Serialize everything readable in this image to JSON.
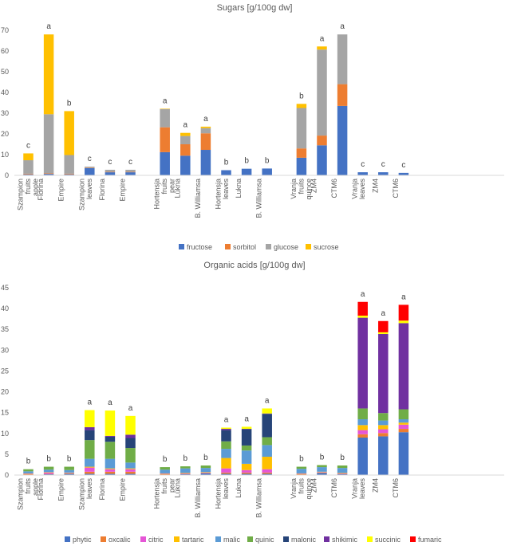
{
  "colors": {
    "fructose": "#4472c4",
    "sorbitol": "#ed7d31",
    "glucose": "#a5a5a5",
    "sucrose": "#ffc000",
    "phytic": "#4472c4",
    "oxcalic": "#ed7d31",
    "citric": "#e556d6",
    "tartaric": "#ffc000",
    "malic": "#5b9bd5",
    "quinic": "#70ad47",
    "malonic": "#264478",
    "shikimic": "#7030a0",
    "succinic": "#ffff00",
    "fumaric": "#ff0000"
  },
  "chart_data": [
    {
      "type": "bar",
      "stacked": true,
      "title": "Sugars [g/100g dw]",
      "ylim": [
        0,
        70
      ],
      "yticks": [
        0,
        10,
        20,
        30,
        40,
        50,
        60,
        70
      ],
      "categories": [
        {
          "lines": [
            "Szampion",
            "fruits",
            "apple"
          ],
          "sig": "c",
          "gap_before": false
        },
        {
          "lines": [
            "Florina"
          ],
          "sig": "a",
          "gap_before": false
        },
        {
          "lines": [
            "Empire"
          ],
          "sig": "b",
          "gap_before": false
        },
        {
          "lines": [
            "Szampion",
            "leaves"
          ],
          "sig": "c",
          "gap_before": false
        },
        {
          "lines": [
            "Florina"
          ],
          "sig": "c",
          "gap_before": false
        },
        {
          "lines": [
            "Empire"
          ],
          "sig": "c",
          "gap_before": false
        },
        {
          "lines": [
            "Hortensja",
            "fruits",
            "pear"
          ],
          "sig": "a",
          "gap_before": true
        },
        {
          "lines": [
            "Lukna"
          ],
          "sig": "a",
          "gap_before": false
        },
        {
          "lines": [
            "B. Williamsa"
          ],
          "sig": "a",
          "gap_before": false
        },
        {
          "lines": [
            "Hortensja",
            "leaves"
          ],
          "sig": "b",
          "gap_before": false
        },
        {
          "lines": [
            "Lukna"
          ],
          "sig": "b",
          "gap_before": false
        },
        {
          "lines": [
            "B. Williamsa"
          ],
          "sig": "b",
          "gap_before": false
        },
        {
          "lines": [
            "Vranja",
            "fruits",
            "quince"
          ],
          "sig": "b",
          "gap_before": true
        },
        {
          "lines": [
            "ZM4"
          ],
          "sig": "a",
          "gap_before": false
        },
        {
          "lines": [
            "CTM6"
          ],
          "sig": "a",
          "gap_before": false
        },
        {
          "lines": [
            "Vranja",
            "leaves"
          ],
          "sig": "c",
          "gap_before": false
        },
        {
          "lines": [
            "ZM4"
          ],
          "sig": "c",
          "gap_before": false
        },
        {
          "lines": [
            "CTM6"
          ],
          "sig": "c",
          "gap_before": false
        }
      ],
      "series": [
        {
          "name": "fructose",
          "values": [
            0.5,
            0.7,
            0.5,
            3.5,
            1.5,
            1.5,
            11.2,
            9.5,
            12.3,
            2.5,
            3.2,
            3.3,
            8.5,
            14.5,
            33.5,
            1.5,
            1.5,
            1.2
          ]
        },
        {
          "name": "sorbitol",
          "values": [
            0.3,
            0.3,
            0.3,
            0.2,
            0.2,
            0.2,
            12.0,
            5.5,
            8.0,
            0.0,
            0.0,
            0.0,
            4.5,
            4.7,
            10.5,
            0.0,
            0.0,
            0.0
          ]
        },
        {
          "name": "glucose",
          "values": [
            6.5,
            28.5,
            9.0,
            0.5,
            1.0,
            1.0,
            8.8,
            4.0,
            2.5,
            0.0,
            0.0,
            0.0,
            19.5,
            41.5,
            24.0,
            0.0,
            0.0,
            0.0
          ]
        },
        {
          "name": "sucrose",
          "values": [
            3.3,
            38.5,
            21.2,
            0.0,
            0.0,
            0.0,
            0.2,
            1.5,
            0.7,
            0.0,
            0.0,
            0.0,
            2.0,
            1.5,
            0.0,
            0.0,
            0.0,
            0.0
          ]
        }
      ]
    },
    {
      "type": "bar",
      "stacked": true,
      "title": "Organic acids [g/100g dw]",
      "ylim": [
        0,
        45
      ],
      "yticks": [
        0,
        5,
        10,
        15,
        20,
        25,
        30,
        35,
        40,
        45
      ],
      "categories": [
        {
          "lines": [
            "Szampion",
            "fruits",
            "apple"
          ],
          "sig": "b",
          "gap_before": false
        },
        {
          "lines": [
            "Florina"
          ],
          "sig": "b",
          "gap_before": false
        },
        {
          "lines": [
            "Empire"
          ],
          "sig": "b",
          "gap_before": false
        },
        {
          "lines": [
            "Szampion",
            "leaves"
          ],
          "sig": "a",
          "gap_before": false
        },
        {
          "lines": [
            "Florina"
          ],
          "sig": "a",
          "gap_before": false
        },
        {
          "lines": [
            "Empire"
          ],
          "sig": "a",
          "gap_before": false
        },
        {
          "lines": [
            "Hortensja",
            "fruits",
            "pear"
          ],
          "sig": "b",
          "gap_before": true
        },
        {
          "lines": [
            "Lukna"
          ],
          "sig": "b",
          "gap_before": false
        },
        {
          "lines": [
            "B. Williamsa"
          ],
          "sig": "b",
          "gap_before": false
        },
        {
          "lines": [
            "Hortensja",
            "leaves"
          ],
          "sig": "a",
          "gap_before": false
        },
        {
          "lines": [
            "Lukna"
          ],
          "sig": "a",
          "gap_before": false
        },
        {
          "lines": [
            "B. Williamsa"
          ],
          "sig": "a",
          "gap_before": false
        },
        {
          "lines": [
            "Vranja",
            "fruits",
            "quince"
          ],
          "sig": "b",
          "gap_before": true
        },
        {
          "lines": [
            "ZM4"
          ],
          "sig": "b",
          "gap_before": false
        },
        {
          "lines": [
            "CTM6"
          ],
          "sig": "b",
          "gap_before": false
        },
        {
          "lines": [
            "Vranja",
            "leaves"
          ],
          "sig": "a",
          "gap_before": false
        },
        {
          "lines": [
            "ZM4"
          ],
          "sig": "a",
          "gap_before": false
        },
        {
          "lines": [
            "CTM6"
          ],
          "sig": "a",
          "gap_before": false
        }
      ],
      "series": [
        {
          "name": "phytic",
          "values": [
            0.1,
            0.2,
            0.3,
            0.3,
            0.3,
            0.3,
            0.1,
            0.2,
            0.4,
            0.3,
            0.3,
            0.3,
            0.1,
            0.5,
            0.2,
            9.0,
            9.3,
            10.3
          ]
        },
        {
          "name": "oxcalic",
          "values": [
            0.1,
            0.1,
            0.1,
            0.5,
            0.5,
            0.5,
            0.1,
            0.1,
            0.1,
            0.3,
            0.3,
            0.3,
            0.1,
            0.1,
            0.1,
            0.8,
            0.8,
            0.8
          ]
        },
        {
          "name": "citric",
          "values": [
            0.1,
            0.3,
            0.1,
            1.0,
            0.6,
            0.6,
            0.1,
            0.1,
            0.1,
            1.0,
            0.6,
            0.8,
            0.1,
            0.1,
            0.1,
            1.0,
            0.9,
            1.0
          ]
        },
        {
          "name": "tartaric",
          "values": [
            0.1,
            0.1,
            0.1,
            0.2,
            0.2,
            0.2,
            0.1,
            0.1,
            0.1,
            2.5,
            1.5,
            3.0,
            0.1,
            0.1,
            0.1,
            1.2,
            1.0,
            0.5
          ]
        },
        {
          "name": "malic",
          "values": [
            0.5,
            0.6,
            0.6,
            1.9,
            2.3,
            1.4,
            0.9,
            1.1,
            1.0,
            2.2,
            3.2,
            2.8,
            1.1,
            1.1,
            1.2,
            1.4,
            1.1,
            0.8
          ]
        },
        {
          "name": "quinic",
          "values": [
            0.5,
            0.7,
            0.8,
            4.5,
            4.1,
            3.5,
            0.6,
            0.5,
            0.6,
            1.8,
            1.2,
            1.9,
            0.5,
            0.5,
            0.6,
            2.6,
            1.8,
            2.4
          ]
        },
        {
          "name": "malonic",
          "values": [
            0.0,
            0.0,
            0.0,
            2.4,
            1.2,
            2.4,
            0.0,
            0.0,
            0.0,
            2.7,
            3.9,
            5.6,
            0.0,
            0.0,
            0.0,
            0.0,
            0.0,
            0.0
          ]
        },
        {
          "name": "shikimic",
          "values": [
            0.0,
            0.0,
            0.0,
            0.7,
            0.2,
            0.8,
            0.0,
            0.0,
            0.0,
            0.3,
            0.1,
            0.1,
            0.0,
            0.0,
            0.0,
            21.8,
            19.0,
            20.7
          ]
        },
        {
          "name": "succinic",
          "values": [
            0.0,
            0.0,
            0.0,
            4.1,
            6.1,
            4.5,
            0.0,
            0.0,
            0.0,
            0.3,
            0.5,
            1.2,
            0.0,
            0.0,
            0.0,
            0.5,
            0.4,
            0.6
          ]
        },
        {
          "name": "fumaric",
          "values": [
            0.0,
            0.0,
            0.0,
            0.0,
            0.0,
            0.0,
            0.0,
            0.0,
            0.0,
            0.0,
            0.0,
            0.0,
            0.0,
            0.0,
            0.0,
            3.3,
            2.7,
            3.8
          ]
        }
      ]
    }
  ]
}
